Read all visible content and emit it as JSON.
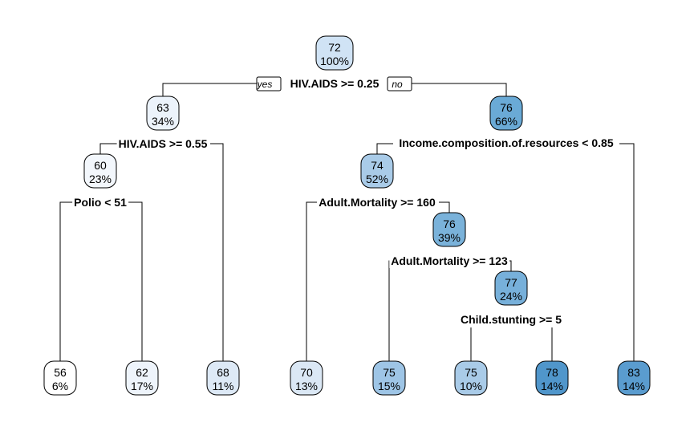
{
  "tree": {
    "yes_label": "yes",
    "no_label": "no",
    "splits": [
      "HIV.AIDS >= 0.25",
      "HIV.AIDS >= 0.55",
      "Polio < 51",
      "Income.composition.of.resources < 0.85",
      "Adult.Mortality >= 160",
      "Adult.Mortality >= 123",
      "Child.stunting >= 5"
    ],
    "nodes": [
      {
        "value": "72",
        "pct": "100%",
        "fill": "#d0e3f5"
      },
      {
        "value": "63",
        "pct": "34%",
        "fill": "#ecf3fb"
      },
      {
        "value": "76",
        "pct": "66%",
        "fill": "#6aaad6"
      },
      {
        "value": "60",
        "pct": "23%",
        "fill": "#f3f7fc"
      },
      {
        "value": "74",
        "pct": "52%",
        "fill": "#a9cbe8"
      },
      {
        "value": "76",
        "pct": "39%",
        "fill": "#7ab2da"
      },
      {
        "value": "77",
        "pct": "24%",
        "fill": "#77b0da"
      },
      {
        "value": "56",
        "pct": "6%",
        "fill": "#ffffff"
      },
      {
        "value": "62",
        "pct": "17%",
        "fill": "#eef4fb"
      },
      {
        "value": "68",
        "pct": "11%",
        "fill": "#dde9f6"
      },
      {
        "value": "70",
        "pct": "13%",
        "fill": "#dbe8f5"
      },
      {
        "value": "75",
        "pct": "15%",
        "fill": "#9ec5e6"
      },
      {
        "value": "75",
        "pct": "10%",
        "fill": "#a9cbe8"
      },
      {
        "value": "78",
        "pct": "14%",
        "fill": "#5096cb"
      },
      {
        "value": "83",
        "pct": "14%",
        "fill": "#5a9ccf"
      }
    ]
  }
}
